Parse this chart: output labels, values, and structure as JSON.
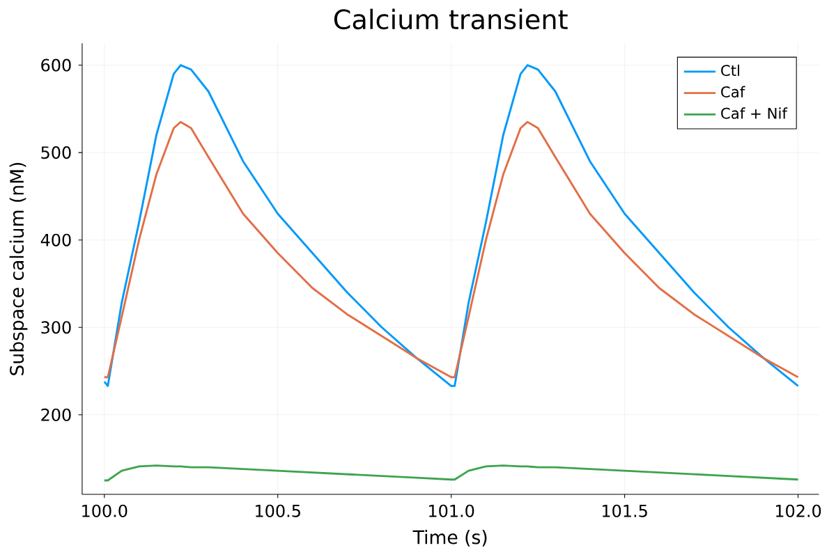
{
  "chart_data": {
    "type": "line",
    "title": "Calcium transient",
    "xlabel": "Time (s)",
    "ylabel": "Subspace calcium (nM)",
    "xlim": [
      99.936,
      102.06
    ],
    "ylim": [
      109,
      625
    ],
    "xticks": [
      {
        "value": 100,
        "label": "100.0"
      },
      {
        "value": 100.5,
        "label": "100.5"
      },
      {
        "value": 101,
        "label": "101.0"
      },
      {
        "value": 101.5,
        "label": "101.5"
      },
      {
        "value": 102,
        "label": "102.0"
      }
    ],
    "yticks": [
      200,
      300,
      400,
      500,
      600
    ],
    "grid": true,
    "legend": "top right",
    "line_style": "solid",
    "marker": "none",
    "x": [
      100.0,
      100.01,
      100.05,
      100.1,
      100.15,
      100.2,
      100.22,
      100.25,
      100.3,
      100.4,
      100.5,
      100.6,
      100.7,
      100.8,
      100.9,
      101.0,
      101.01,
      101.05,
      101.1,
      101.15,
      101.2,
      101.22,
      101.25,
      101.3,
      101.4,
      101.5,
      101.6,
      101.7,
      101.8,
      101.9,
      102.0
    ],
    "series": [
      {
        "name": "Ctl",
        "color": "#009af9",
        "values": [
          238,
          233,
          328,
          420,
          520,
          590,
          600,
          595,
          570,
          490,
          430,
          385,
          340,
          300,
          265,
          233,
          233,
          328,
          420,
          520,
          590,
          600,
          595,
          570,
          490,
          430,
          385,
          340,
          300,
          265,
          233
        ]
      },
      {
        "name": "Caf",
        "color": "#e26f46",
        "values": [
          243,
          243,
          312,
          400,
          475,
          528,
          535,
          528,
          495,
          430,
          385,
          345,
          315,
          290,
          265,
          243,
          243,
          312,
          400,
          475,
          528,
          535,
          528,
          495,
          430,
          385,
          345,
          315,
          290,
          265,
          243
        ]
      },
      {
        "name": "Caf + Nif",
        "color": "#3da44d",
        "values": [
          125,
          125,
          136,
          141,
          142,
          141,
          141,
          140,
          140,
          138,
          136,
          134,
          132,
          130,
          128,
          126,
          126,
          136,
          141,
          142,
          141,
          141,
          140,
          140,
          138,
          136,
          134,
          132,
          130,
          128,
          126
        ]
      }
    ]
  }
}
